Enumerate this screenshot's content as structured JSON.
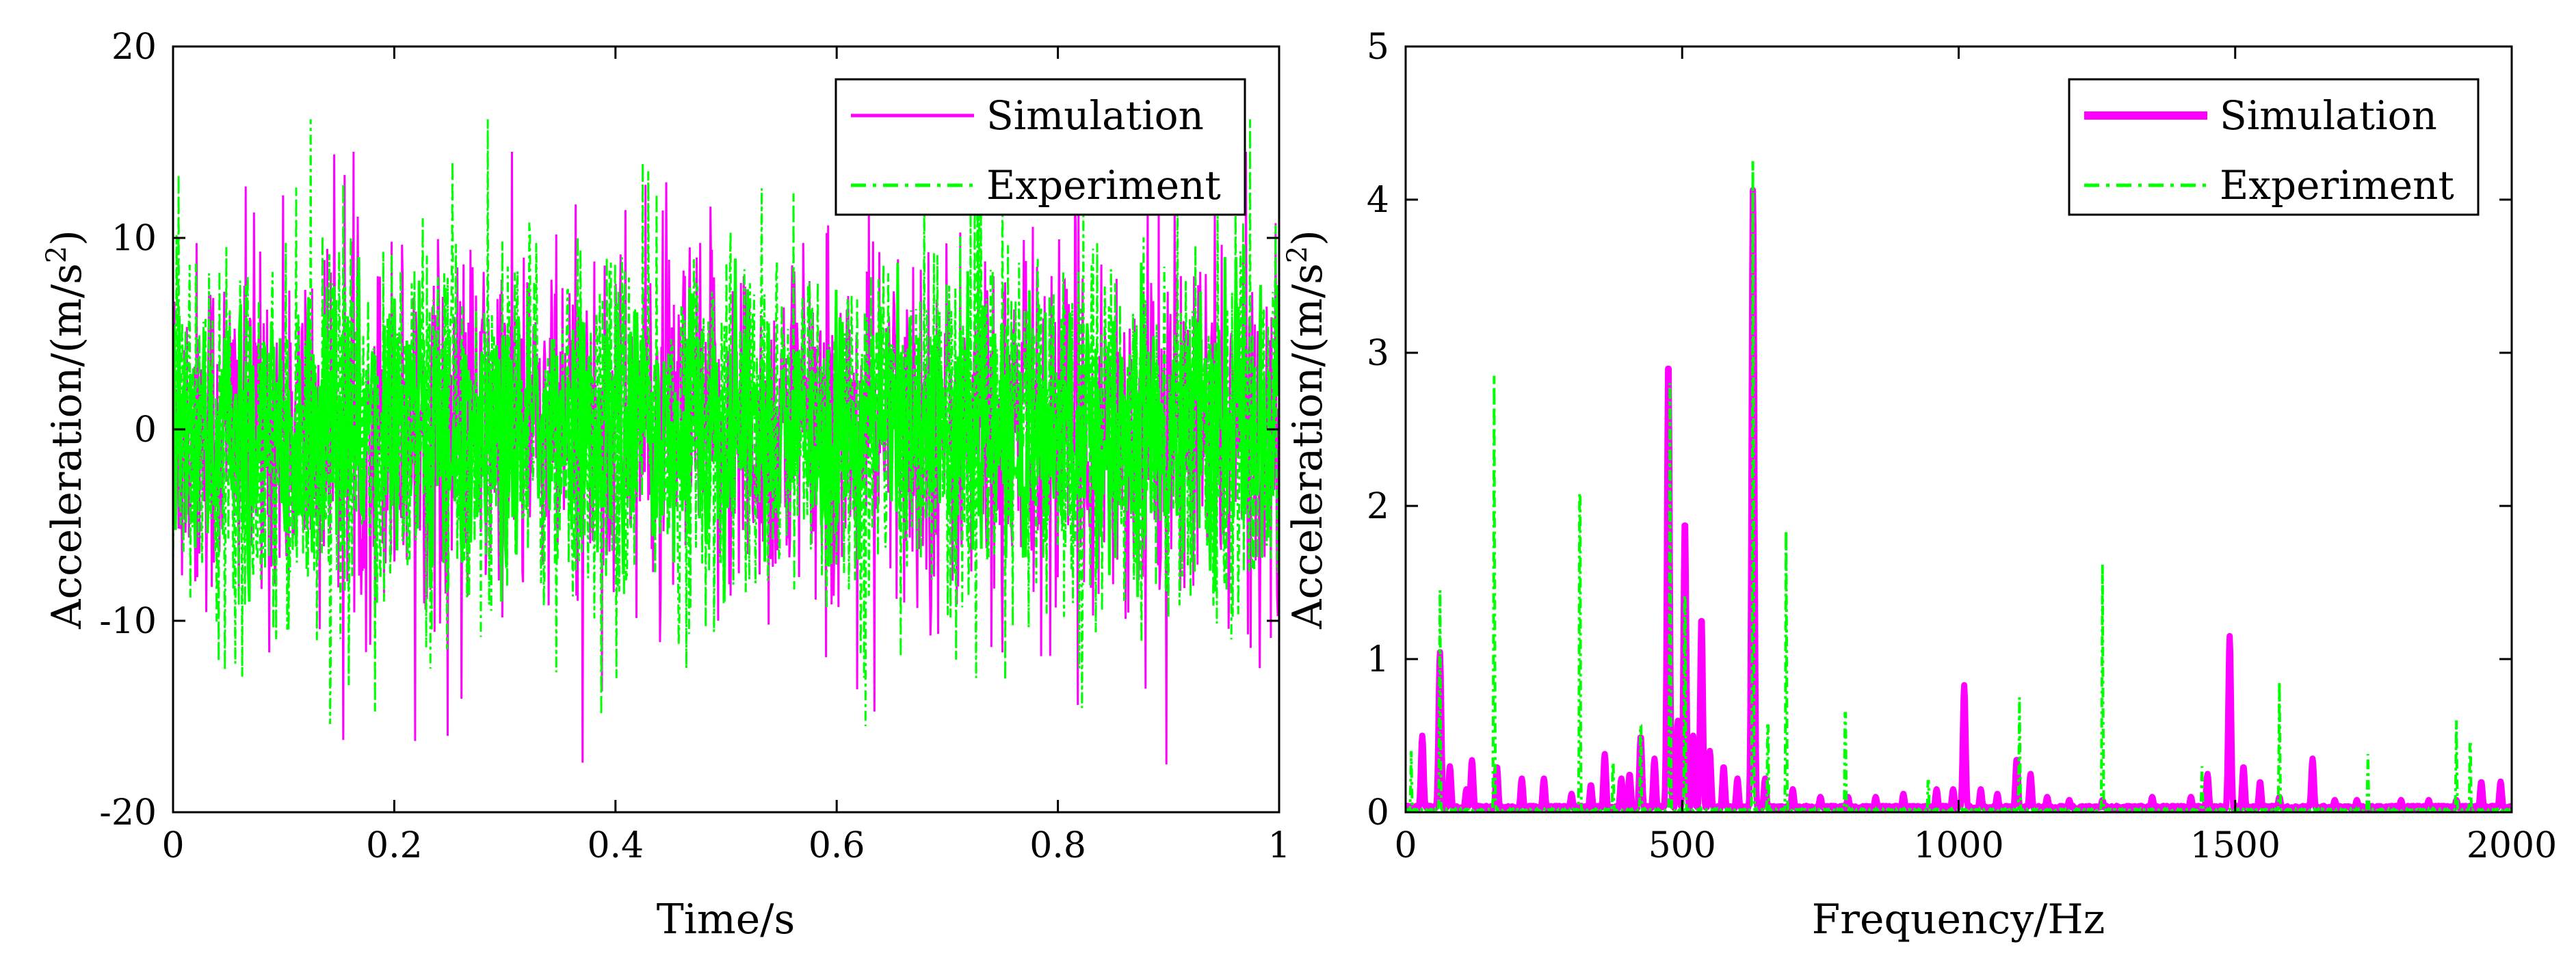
{
  "colors": {
    "simulation": "#ff00ff",
    "experiment": "#00ff00"
  },
  "chart_data": [
    {
      "type": "line",
      "xlabel": "Time/s",
      "ylabel": "Acceleration/(m/s",
      "ylabel_sup": "2",
      "ylabel_end": ")",
      "xlim": [
        0,
        1
      ],
      "ylim": [
        -20,
        20
      ],
      "xticks": [
        "0",
        "0.2",
        "0.4",
        "0.6",
        "0.8",
        "1"
      ],
      "yticks": [
        "-20",
        "-10",
        "0",
        "10",
        "20"
      ],
      "grid": false,
      "legend": "top-right",
      "series": [
        {
          "name": "Simulation",
          "style": "solid",
          "color": "#ff00ff",
          "description_range": [
            -17.5,
            14.5
          ]
        },
        {
          "name": "Experiment",
          "style": "dash-dot",
          "color": "#00ff00",
          "description_range": [
            -15.5,
            16.2
          ]
        }
      ]
    },
    {
      "type": "line",
      "xlabel": "Frequency/Hz",
      "ylabel": "Acceleration/(m/s",
      "ylabel_sup": "2",
      "ylabel_end": ")",
      "xlim": [
        0,
        2000
      ],
      "ylim": [
        0,
        5
      ],
      "xticks": [
        "0",
        "500",
        "1000",
        "1500",
        "2000"
      ],
      "yticks": [
        "0",
        "1",
        "2",
        "3",
        "4",
        "5"
      ],
      "grid": false,
      "legend": "top-right",
      "series": [
        {
          "name": "Simulation",
          "style": "solid-thick",
          "color": "#ff00ff",
          "peaks": [
            [
              30,
              0.5
            ],
            [
              62,
              1.05
            ],
            [
              80,
              0.3
            ],
            [
              110,
              0.15
            ],
            [
              120,
              0.34
            ],
            [
              165,
              0.3
            ],
            [
              210,
              0.22
            ],
            [
              250,
              0.22
            ],
            [
              300,
              0.12
            ],
            [
              335,
              0.18
            ],
            [
              360,
              0.38
            ],
            [
              390,
              0.22
            ],
            [
              405,
              0.25
            ],
            [
              425,
              0.5
            ],
            [
              450,
              0.35
            ],
            [
              475,
              2.97
            ],
            [
              492,
              0.6
            ],
            [
              505,
              1.92
            ],
            [
              520,
              0.5
            ],
            [
              535,
              1.28
            ],
            [
              550,
              0.4
            ],
            [
              575,
              0.3
            ],
            [
              600,
              0.22
            ],
            [
              628,
              4.08
            ],
            [
              650,
              0.22
            ],
            [
              700,
              0.15
            ],
            [
              750,
              0.1
            ],
            [
              800,
              0.1
            ],
            [
              850,
              0.1
            ],
            [
              900,
              0.12
            ],
            [
              960,
              0.15
            ],
            [
              990,
              0.15
            ],
            [
              1010,
              0.83
            ],
            [
              1040,
              0.15
            ],
            [
              1070,
              0.12
            ],
            [
              1105,
              0.35
            ],
            [
              1130,
              0.25
            ],
            [
              1160,
              0.1
            ],
            [
              1200,
              0.08
            ],
            [
              1260,
              0.08
            ],
            [
              1350,
              0.1
            ],
            [
              1420,
              0.1
            ],
            [
              1450,
              0.25
            ],
            [
              1490,
              1.15
            ],
            [
              1515,
              0.3
            ],
            [
              1545,
              0.2
            ],
            [
              1580,
              0.1
            ],
            [
              1640,
              0.35
            ],
            [
              1680,
              0.08
            ],
            [
              1720,
              0.08
            ],
            [
              1800,
              0.08
            ],
            [
              1850,
              0.08
            ],
            [
              1900,
              0.08
            ],
            [
              1945,
              0.2
            ],
            [
              1980,
              0.2
            ]
          ]
        },
        {
          "name": "Experiment",
          "style": "dash-dot",
          "color": "#00ff00",
          "peaks": [
            [
              10,
              0.4
            ],
            [
              62,
              1.5
            ],
            [
              160,
              2.85
            ],
            [
              315,
              2.58
            ],
            [
              375,
              0.4
            ],
            [
              425,
              0.7
            ],
            [
              478,
              2.9
            ],
            [
              505,
              1.75
            ],
            [
              628,
              4.4
            ],
            [
              655,
              0.7
            ],
            [
              688,
              1.9
            ],
            [
              795,
              0.8
            ],
            [
              945,
              0.25
            ],
            [
              1110,
              0.75
            ],
            [
              1260,
              1.62
            ],
            [
              1440,
              0.3
            ],
            [
              1580,
              0.85
            ],
            [
              1740,
              0.38
            ],
            [
              1900,
              0.6
            ],
            [
              1925,
              0.55
            ]
          ]
        }
      ]
    }
  ]
}
